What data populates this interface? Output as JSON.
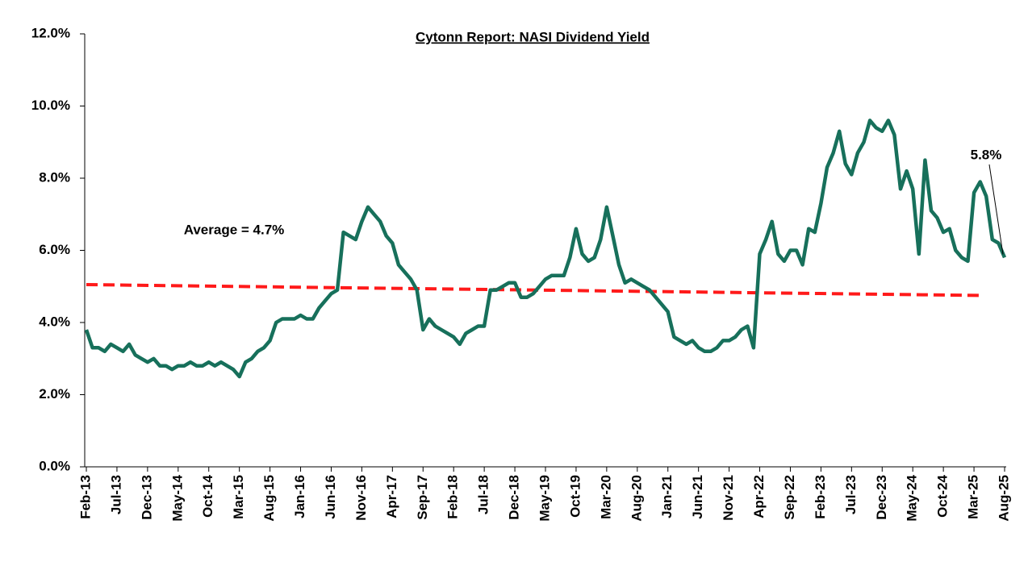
{
  "chart_data": {
    "type": "line",
    "title": "Cytonn Report: NASI Dividend Yield",
    "categories": [
      "Feb-13",
      null,
      null,
      null,
      null,
      "Jul-13",
      null,
      null,
      null,
      null,
      "Dec-13",
      null,
      null,
      null,
      null,
      "May-14",
      null,
      null,
      null,
      null,
      "Oct-14",
      null,
      null,
      null,
      null,
      "Mar-15",
      null,
      null,
      null,
      null,
      "Aug-15",
      null,
      null,
      null,
      null,
      "Jan-16",
      null,
      null,
      null,
      null,
      "Jun-16",
      null,
      null,
      null,
      null,
      "Nov-16",
      null,
      null,
      null,
      null,
      "Apr-17",
      null,
      null,
      null,
      null,
      "Sep-17",
      null,
      null,
      null,
      null,
      "Feb-18",
      null,
      null,
      null,
      null,
      "Jul-18",
      null,
      null,
      null,
      null,
      "Dec-18",
      null,
      null,
      null,
      null,
      "May-19",
      null,
      null,
      null,
      null,
      "Oct-19",
      null,
      null,
      null,
      null,
      "Mar-20",
      null,
      null,
      null,
      null,
      "Aug-20",
      null,
      null,
      null,
      null,
      "Jan-21",
      null,
      null,
      null,
      null,
      "Jun-21",
      null,
      null,
      null,
      null,
      "Nov-21",
      null,
      null,
      null,
      null,
      "Apr-22",
      null,
      null,
      null,
      null,
      "Sep-22",
      null,
      null,
      null,
      null,
      "Feb-23",
      null,
      null,
      null,
      null,
      "Jul-23",
      null,
      null,
      null,
      null,
      "Dec-23",
      null,
      null,
      null,
      null,
      "May-24",
      null,
      null,
      null,
      null,
      "Oct-24",
      null,
      null,
      null,
      null,
      "Mar-25",
      null,
      null,
      null,
      null,
      "Aug-25"
    ],
    "series": [
      {
        "color": "#17705b",
        "values": [
          3.8,
          3.3,
          3.3,
          3.2,
          3.4,
          3.3,
          3.2,
          3.4,
          3.1,
          3.0,
          2.9,
          3.0,
          2.8,
          2.8,
          2.7,
          2.8,
          2.8,
          2.9,
          2.8,
          2.8,
          2.9,
          2.8,
          2.9,
          2.8,
          2.7,
          2.5,
          2.9,
          3.0,
          3.2,
          3.3,
          3.5,
          4.0,
          4.1,
          4.1,
          4.1,
          4.2,
          4.1,
          4.1,
          4.4,
          4.6,
          4.8,
          4.9,
          6.5,
          6.4,
          6.3,
          6.8,
          7.2,
          7.0,
          6.8,
          6.4,
          6.2,
          5.6,
          5.4,
          5.2,
          4.9,
          3.8,
          4.1,
          3.9,
          3.8,
          3.7,
          3.6,
          3.4,
          3.7,
          3.8,
          3.9,
          3.9,
          4.9,
          4.9,
          5.0,
          5.1,
          5.1,
          4.7,
          4.7,
          4.8,
          5.0,
          5.2,
          5.3,
          5.3,
          5.3,
          5.8,
          6.6,
          5.9,
          5.7,
          5.8,
          6.3,
          7.2,
          6.4,
          5.6,
          5.1,
          5.2,
          5.1,
          5.0,
          4.9,
          4.7,
          4.5,
          4.3,
          3.6,
          3.5,
          3.4,
          3.5,
          3.3,
          3.2,
          3.2,
          3.3,
          3.5,
          3.5,
          3.6,
          3.8,
          3.9,
          3.3,
          5.9,
          6.3,
          6.8,
          5.9,
          5.7,
          6.0,
          6.0,
          5.6,
          6.6,
          6.5,
          7.3,
          8.3,
          8.7,
          9.3,
          8.4,
          8.1,
          8.7,
          9.0,
          9.6,
          9.4,
          9.3,
          9.6,
          9.2,
          7.7,
          8.2,
          7.7,
          5.9,
          8.5,
          7.1,
          6.9,
          6.5,
          6.6,
          6.0,
          5.8,
          5.7,
          7.6,
          7.9,
          7.5,
          6.3,
          6.2,
          5.8
        ]
      }
    ],
    "trend": {
      "color": "#ff1a1a",
      "values": [
        5.05,
        4.75
      ]
    },
    "annotations": [
      "Average = 4.7%",
      "5.8%"
    ],
    "ylim": [
      0,
      12
    ],
    "yticks": [
      {
        "value": 0,
        "label": "0.0%"
      },
      {
        "value": 2,
        "label": "2.0%"
      },
      {
        "value": 4,
        "label": "4.0%"
      },
      {
        "value": 6,
        "label": "6.0%"
      },
      {
        "value": 8,
        "label": "8.0%"
      },
      {
        "value": 10,
        "label": "10.0%"
      },
      {
        "value": 12,
        "label": "12.0%"
      }
    ]
  }
}
